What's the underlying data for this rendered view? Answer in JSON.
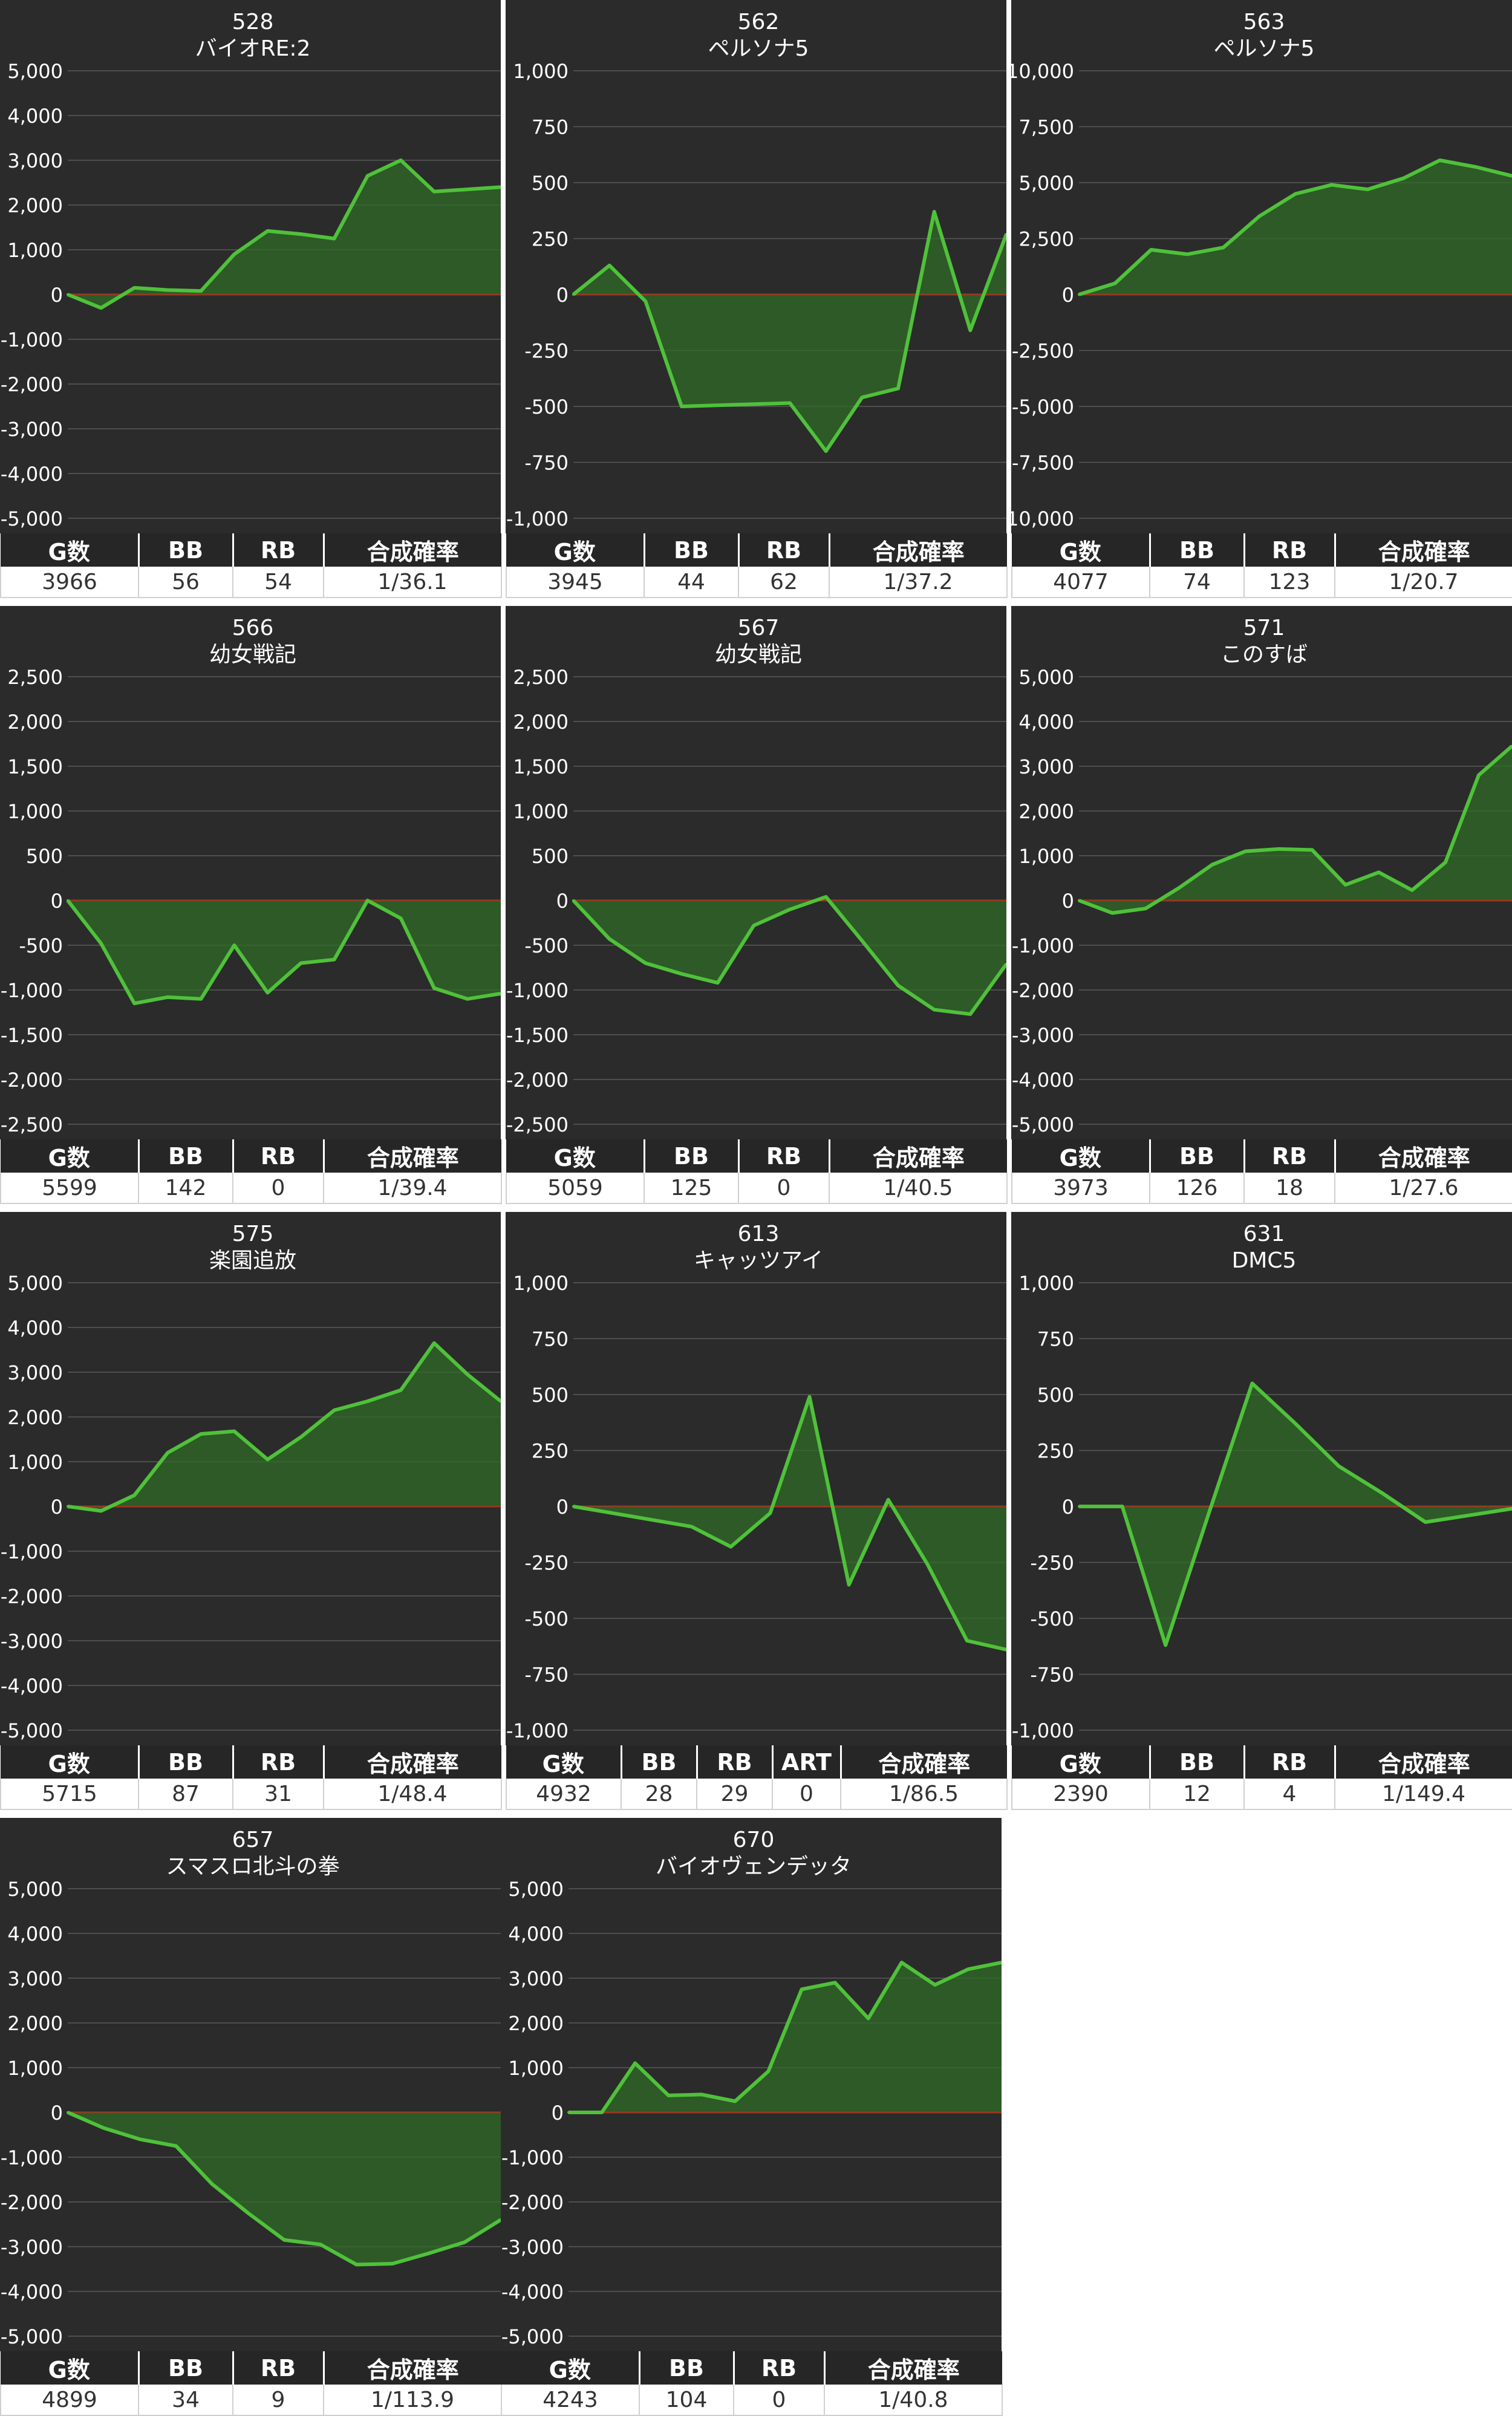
{
  "chart_data": [
    {
      "type": "area",
      "title": "528",
      "subtitle": "バイオRE:2",
      "y_ticks": [
        5000,
        4000,
        3000,
        2000,
        1000,
        0,
        -1000,
        -2000,
        -3000,
        -4000,
        -5000
      ],
      "ylim": [
        -5000,
        5000
      ],
      "values": [
        0,
        -300,
        150,
        100,
        80,
        900,
        1420,
        1350,
        1250,
        2650,
        3000,
        2300,
        2350,
        2400
      ],
      "stats": {
        "headers": [
          "G数",
          "BB",
          "RB",
          "合成確率"
        ],
        "values": [
          "3966",
          "56",
          "54",
          "1/36.1"
        ]
      }
    },
    {
      "type": "area",
      "title": "562",
      "subtitle": "ペルソナ5",
      "y_ticks": [
        1000,
        750,
        500,
        250,
        0,
        -250,
        -500,
        -750,
        -1000
      ],
      "ylim": [
        -1000,
        1000
      ],
      "values": [
        0,
        130,
        -30,
        -500,
        -495,
        -490,
        -485,
        -700,
        -460,
        -420,
        370,
        -160,
        270
      ],
      "stats": {
        "headers": [
          "G数",
          "BB",
          "RB",
          "合成確率"
        ],
        "values": [
          "3945",
          "44",
          "62",
          "1/37.2"
        ]
      }
    },
    {
      "type": "area",
      "title": "563",
      "subtitle": "ペルソナ5",
      "y_ticks": [
        10000,
        7500,
        5000,
        2500,
        0,
        -2500,
        -5000,
        -7500,
        -10000
      ],
      "ylim": [
        -10000,
        10000
      ],
      "values": [
        0,
        500,
        2000,
        1800,
        2100,
        3500,
        4500,
        4900,
        4700,
        5200,
        6000,
        5700,
        5300
      ],
      "stats": {
        "headers": [
          "G数",
          "BB",
          "RB",
          "合成確率"
        ],
        "values": [
          "4077",
          "74",
          "123",
          "1/20.7"
        ]
      }
    },
    {
      "type": "area",
      "title": "566",
      "subtitle": "幼女戦記",
      "y_ticks": [
        2500,
        2000,
        1500,
        1000,
        500,
        0,
        -500,
        -1000,
        -1500,
        -2000,
        -2500
      ],
      "ylim": [
        -2500,
        2500
      ],
      "values": [
        0,
        -480,
        -1150,
        -1080,
        -1100,
        -500,
        -1030,
        -700,
        -660,
        0,
        -200,
        -980,
        -1100,
        -1040
      ],
      "stats": {
        "headers": [
          "G数",
          "BB",
          "RB",
          "合成確率"
        ],
        "values": [
          "5599",
          "142",
          "0",
          "1/39.4"
        ]
      }
    },
    {
      "type": "area",
      "title": "567",
      "subtitle": "幼女戦記",
      "y_ticks": [
        2500,
        2000,
        1500,
        1000,
        500,
        0,
        -500,
        -1000,
        -1500,
        -2000,
        -2500
      ],
      "ylim": [
        -2500,
        2500
      ],
      "values": [
        0,
        -430,
        -700,
        -820,
        -920,
        -280,
        -100,
        40,
        -450,
        -950,
        -1220,
        -1270,
        -710
      ],
      "stats": {
        "headers": [
          "G数",
          "BB",
          "RB",
          "合成確率"
        ],
        "values": [
          "5059",
          "125",
          "0",
          "1/40.5"
        ]
      }
    },
    {
      "type": "area",
      "title": "571",
      "subtitle": "このすば",
      "y_ticks": [
        5000,
        4000,
        3000,
        2000,
        1000,
        0,
        -1000,
        -2000,
        -3000,
        -4000,
        -5000
      ],
      "ylim": [
        -5000,
        5000
      ],
      "values": [
        0,
        -280,
        -180,
        280,
        800,
        1100,
        1150,
        1130,
        350,
        630,
        230,
        850,
        2800,
        3450
      ],
      "stats": {
        "headers": [
          "G数",
          "BB",
          "RB",
          "合成確率"
        ],
        "values": [
          "3973",
          "126",
          "18",
          "1/27.6"
        ]
      }
    },
    {
      "type": "area",
      "title": "575",
      "subtitle": "楽園追放",
      "y_ticks": [
        5000,
        4000,
        3000,
        2000,
        1000,
        0,
        -1000,
        -2000,
        -3000,
        -4000,
        -5000
      ],
      "ylim": [
        -5000,
        5000
      ],
      "values": [
        0,
        -100,
        250,
        1200,
        1620,
        1680,
        1050,
        1550,
        2150,
        2350,
        2600,
        3650,
        2950,
        2350
      ],
      "stats": {
        "headers": [
          "G数",
          "BB",
          "RB",
          "合成確率"
        ],
        "values": [
          "5715",
          "87",
          "31",
          "1/48.4"
        ]
      }
    },
    {
      "type": "area",
      "title": "613",
      "subtitle": "キャッツアイ",
      "y_ticks": [
        1000,
        750,
        500,
        250,
        0,
        -250,
        -500,
        -750,
        -1000
      ],
      "ylim": [
        -1000,
        1000
      ],
      "values": [
        0,
        -30,
        -60,
        -90,
        -180,
        -30,
        490,
        -350,
        30,
        -260,
        -600,
        -640
      ],
      "stats": {
        "headers": [
          "G数",
          "BB",
          "RB",
          "ART",
          "合成確率"
        ],
        "values": [
          "4932",
          "28",
          "29",
          "0",
          "1/86.5"
        ]
      }
    },
    {
      "type": "area",
      "title": "631",
      "subtitle": "DMC5",
      "y_ticks": [
        1000,
        750,
        500,
        250,
        0,
        -250,
        -500,
        -750,
        -1000
      ],
      "ylim": [
        -1000,
        1000
      ],
      "values": [
        0,
        0,
        -620,
        -30,
        550,
        370,
        180,
        60,
        -70,
        -40,
        -10
      ],
      "stats": {
        "headers": [
          "G数",
          "BB",
          "RB",
          "合成確率"
        ],
        "values": [
          "2390",
          "12",
          "4",
          "1/149.4"
        ]
      }
    },
    {
      "type": "area",
      "title": "657",
      "subtitle": "スマスロ北斗の拳",
      "y_ticks": [
        5000,
        4000,
        3000,
        2000,
        1000,
        0,
        -1000,
        -2000,
        -3000,
        -4000,
        -5000
      ],
      "ylim": [
        -5000,
        5000
      ],
      "values": [
        0,
        -350,
        -600,
        -750,
        -1600,
        -2250,
        -2850,
        -2950,
        -3400,
        -3380,
        -3150,
        -2900,
        -2400
      ],
      "stats": {
        "headers": [
          "G数",
          "BB",
          "RB",
          "合成確率"
        ],
        "values": [
          "4899",
          "34",
          "9",
          "1/113.9"
        ]
      }
    },
    {
      "type": "area",
      "title": "670",
      "subtitle": "バイオヴェンデッタ",
      "y_ticks": [
        5000,
        4000,
        3000,
        2000,
        1000,
        0,
        -1000,
        -2000,
        -3000,
        -4000,
        -5000
      ],
      "ylim": [
        -5000,
        5000
      ],
      "values": [
        0,
        0,
        1100,
        380,
        400,
        250,
        920,
        2750,
        2900,
        2100,
        3350,
        2850,
        3200,
        3350
      ],
      "stats": {
        "headers": [
          "G数",
          "BB",
          "RB",
          "合成確率"
        ],
        "values": [
          "4243",
          "104",
          "0",
          "1/40.8"
        ]
      }
    }
  ],
  "colors": {
    "background": "#2b2b2b",
    "grid": "#5a5a5a",
    "zero_line": "#cc1f1f",
    "line": "#4fc13a",
    "fill": "#2f6b27",
    "text": "#ffffff"
  }
}
